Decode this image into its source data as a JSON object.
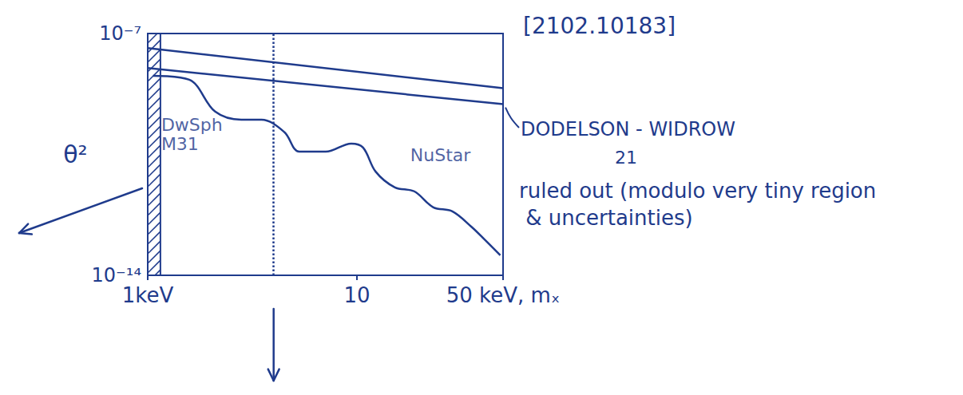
{
  "chart_data": {
    "type": "line",
    "color": "#1f3b8c",
    "log": true,
    "grid": false,
    "xlim": [
      1,
      50
    ],
    "xticks": [
      {
        "value": 1,
        "label": "1keV"
      },
      10,
      {
        "value": 50,
        "label": "50 keV, mₓ"
      }
    ],
    "ylim": [
      1e-14,
      1e-07
    ],
    "yticks": [
      {
        "value": 1e-14,
        "label": "10⁻¹⁴"
      },
      {
        "value": 1e-07,
        "label": "10⁻⁷"
      }
    ],
    "ylabel": "θ²",
    "series": [
      {
        "x": [
          1,
          50
        ],
        "values": [
          3.8e-08,
          2.6e-09
        ]
      },
      {
        "x": [
          1,
          50
        ],
        "values": [
          1e-08,
          9e-10
        ]
      },
      {
        "x": [
          1.06,
          1.58,
          2.1,
          2.8,
          3.5,
          4.5,
          5.3,
          7.1,
          9.4,
          10.7,
          12.3,
          15.2,
          18.8,
          23.2,
          28.6,
          35.4,
          40.7,
          48.5
        ],
        "values": [
          6e-09,
          4.6e-09,
          5.5e-10,
          3.2e-10,
          3.2e-10,
          1.4e-10,
          3.8e-11,
          3.8e-11,
          6.5e-11,
          5e-11,
          1e-11,
          3.5e-12,
          2.7e-12,
          9.3e-13,
          7.1e-13,
          2.5e-13,
          1.1e-13,
          3.8e-14
        ]
      }
    ],
    "excluded_region_x": [
      1,
      1.15
    ],
    "marked_x": 4,
    "annotations": [
      {
        "text": "DwSph M31",
        "x": 1.16,
        "y": 1.2e-10
      },
      {
        "text": "NuStar",
        "x": 18,
        "y": 3e-11
      }
    ],
    "reference": "[2102.10183]",
    "line_label": "DODELSON - WIDROW",
    "note_number": "21",
    "note": "ruled out (modulo very tiny region & uncertainties)"
  }
}
